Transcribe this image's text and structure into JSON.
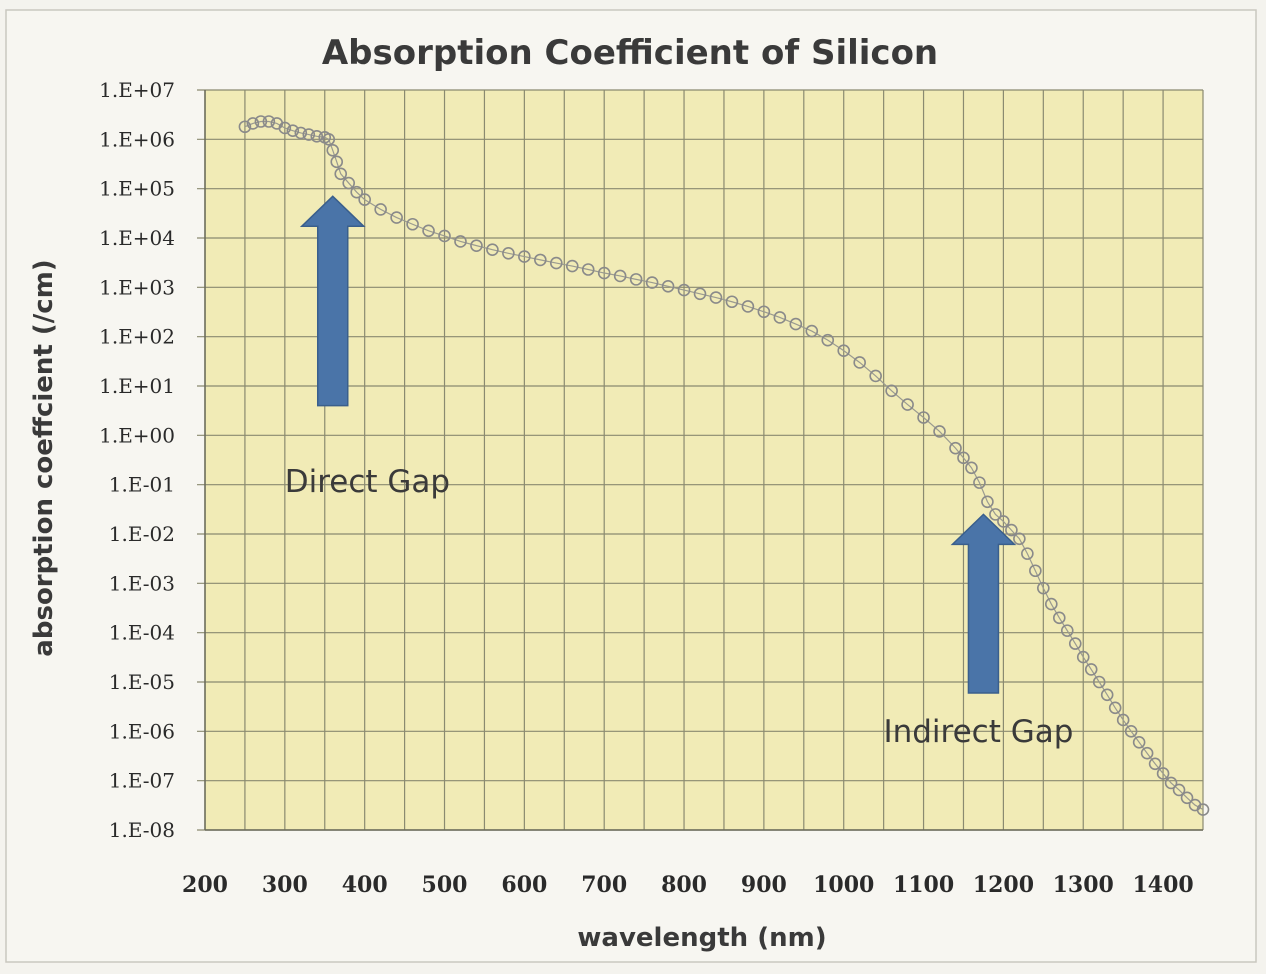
{
  "chart_data": {
    "type": "scatter",
    "title": "Absorption Coefficient of Silicon",
    "xlabel": "wavelength (nm)",
    "ylabel": "absorption coeffcient (/cm)",
    "xlim": [
      200,
      1450
    ],
    "ylim": [
      1e-08,
      10000000.0
    ],
    "yscale": "log",
    "x_ticks": [
      200,
      300,
      400,
      500,
      600,
      700,
      800,
      900,
      1000,
      1100,
      1200,
      1300,
      1400
    ],
    "y_ticks": [
      {
        "value": 10000000.0,
        "label": "1.E+07"
      },
      {
        "value": 1000000.0,
        "label": "1.E+06"
      },
      {
        "value": 100000.0,
        "label": "1.E+05"
      },
      {
        "value": 10000.0,
        "label": "1.E+04"
      },
      {
        "value": 1000.0,
        "label": "1.E+03"
      },
      {
        "value": 100.0,
        "label": "1.E+02"
      },
      {
        "value": 10.0,
        "label": "1.E+01"
      },
      {
        "value": 1.0,
        "label": "1.E+00"
      },
      {
        "value": 0.1,
        "label": "1.E-01"
      },
      {
        "value": 0.01,
        "label": "1.E-02"
      },
      {
        "value": 0.001,
        "label": "1.E-03"
      },
      {
        "value": 0.0001,
        "label": "1.E-04"
      },
      {
        "value": 1e-05,
        "label": "1.E-05"
      },
      {
        "value": 1e-06,
        "label": "1.E-06"
      },
      {
        "value": 1e-07,
        "label": "1.E-07"
      },
      {
        "value": 1e-08,
        "label": "1.E-08"
      }
    ],
    "grid": true,
    "minor_x_grid": true,
    "legend": "none",
    "series": [
      {
        "points": [
          [
            250,
            1800000.0
          ],
          [
            260,
            2100000.0
          ],
          [
            270,
            2300000.0
          ],
          [
            280,
            2300000.0
          ],
          [
            290,
            2100000.0
          ],
          [
            300,
            1700000.0
          ],
          [
            310,
            1500000.0
          ],
          [
            320,
            1350000.0
          ],
          [
            330,
            1250000.0
          ],
          [
            340,
            1150000.0
          ],
          [
            350,
            1100000.0
          ],
          [
            355,
            1000000.0
          ],
          [
            360,
            600000.0
          ],
          [
            365,
            350000.0
          ],
          [
            370,
            200000.0
          ],
          [
            380,
            130000.0
          ],
          [
            390,
            85000.0
          ],
          [
            400,
            60000.0
          ],
          [
            420,
            38000.0
          ],
          [
            440,
            26000.0
          ],
          [
            460,
            19000.0
          ],
          [
            480,
            14000.0
          ],
          [
            500,
            11000.0
          ],
          [
            520,
            8500.0
          ],
          [
            540,
            7000.0
          ],
          [
            560,
            5800.0
          ],
          [
            580,
            4900.0
          ],
          [
            600,
            4200.0
          ],
          [
            620,
            3600.0
          ],
          [
            640,
            3100.0
          ],
          [
            660,
            2700.0
          ],
          [
            680,
            2300.0
          ],
          [
            700,
            1950.0
          ],
          [
            720,
            1700.0
          ],
          [
            740,
            1450.0
          ],
          [
            760,
            1250.0
          ],
          [
            780,
            1050.0
          ],
          [
            800,
            880.0
          ],
          [
            820,
            740.0
          ],
          [
            840,
            620.0
          ],
          [
            860,
            510.0
          ],
          [
            880,
            410.0
          ],
          [
            900,
            320.0
          ],
          [
            920,
            245.0
          ],
          [
            940,
            180.0
          ],
          [
            960,
            130.0
          ],
          [
            980,
            85.0
          ],
          [
            1000,
            52.0
          ],
          [
            1020,
            30.0
          ],
          [
            1040,
            16.0
          ],
          [
            1060,
            8.0
          ],
          [
            1080,
            4.2
          ],
          [
            1100,
            2.3
          ],
          [
            1120,
            1.2
          ],
          [
            1140,
            0.55
          ],
          [
            1150,
            0.35
          ],
          [
            1160,
            0.22
          ],
          [
            1170,
            0.11
          ],
          [
            1180,
            0.045
          ],
          [
            1190,
            0.025
          ],
          [
            1200,
            0.018
          ],
          [
            1210,
            0.012
          ],
          [
            1220,
            0.008
          ],
          [
            1230,
            0.004
          ],
          [
            1240,
            0.0018
          ],
          [
            1250,
            0.0008
          ],
          [
            1260,
            0.00038
          ],
          [
            1270,
            0.0002
          ],
          [
            1280,
            0.00011
          ],
          [
            1290,
            6e-05
          ],
          [
            1300,
            3.2e-05
          ],
          [
            1310,
            1.8e-05
          ],
          [
            1320,
            1e-05
          ],
          [
            1330,
            5.5e-06
          ],
          [
            1340,
            3e-06
          ],
          [
            1350,
            1.7e-06
          ],
          [
            1360,
            1e-06
          ],
          [
            1370,
            6e-07
          ],
          [
            1380,
            3.6e-07
          ],
          [
            1390,
            2.2e-07
          ],
          [
            1400,
            1.4e-07
          ],
          [
            1410,
            9e-08
          ],
          [
            1420,
            6.5e-08
          ],
          [
            1430,
            4.5e-08
          ],
          [
            1440,
            3.2e-08
          ],
          [
            1450,
            2.6e-08
          ]
        ]
      }
    ],
    "annotations": [
      {
        "text": "Direct Gap",
        "arrow_x": 360,
        "arrow_tip": 70000.0,
        "arrow_tail": 4.0
      },
      {
        "text": "Indirect Gap",
        "arrow_x": 1175,
        "arrow_tip": 0.025,
        "arrow_tail": 6e-06
      }
    ],
    "colors": {
      "plot_background": "#f1ebb6",
      "grid": "#8a8a70",
      "marker": "#8a8a8a",
      "arrow": "#4a74a8"
    }
  }
}
